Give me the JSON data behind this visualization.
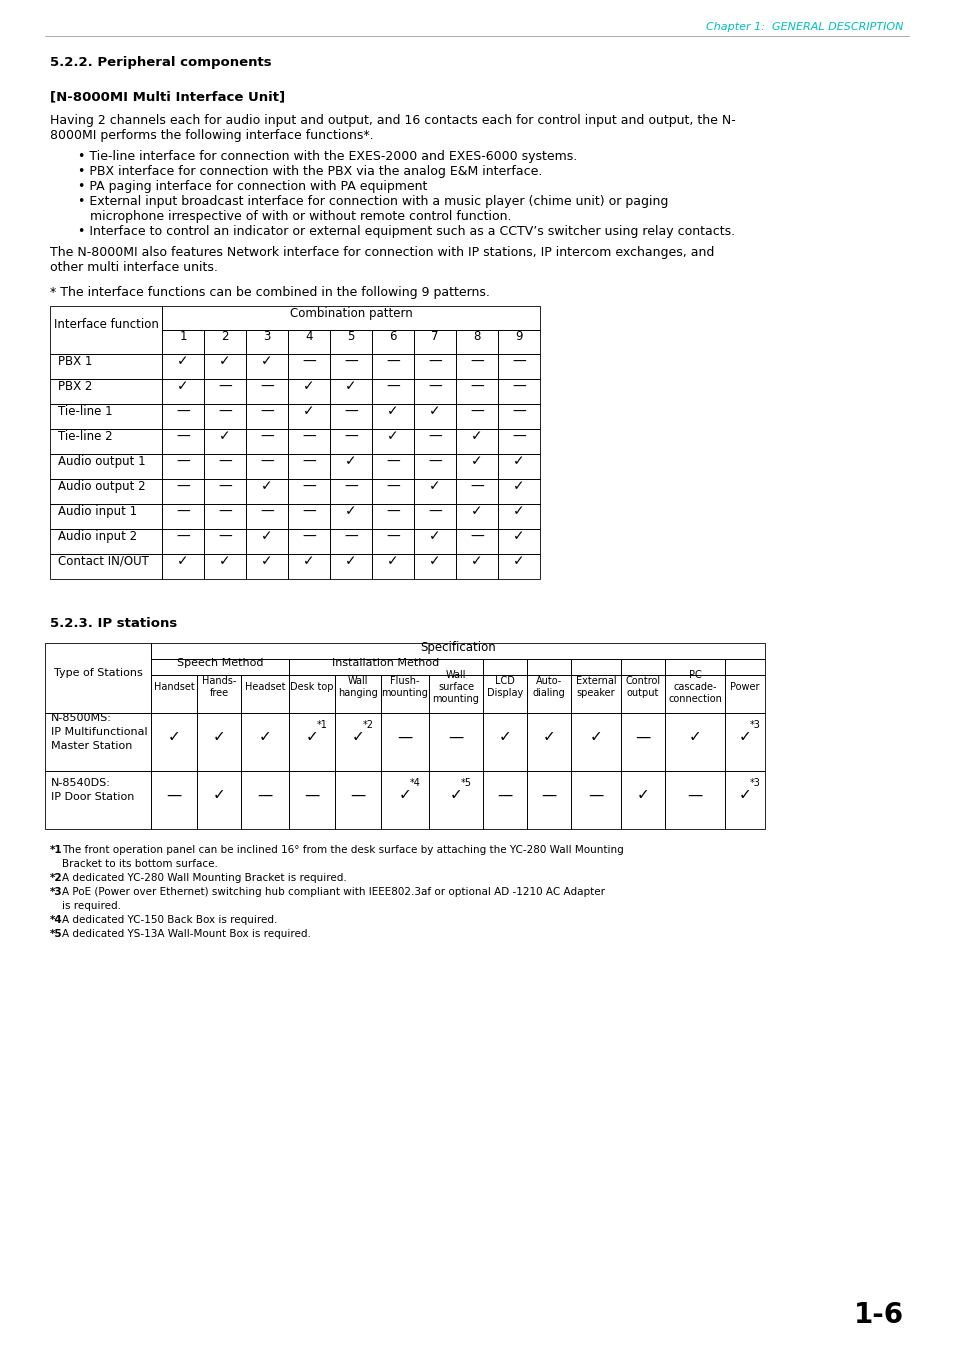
{
  "header_text": "Chapter 1:  GENERAL DESCRIPTION",
  "header_color": "#00BFBF",
  "section_title": "5.2.2. Peripheral components",
  "subsection_title": "[N-8000MI Multi Interface Unit]",
  "body1_line1": "Having 2 channels each for audio input and output, and 16 contacts each for control input and output, the N-",
  "body1_line2": "8000MI performs the following interface functions*.",
  "bullets": [
    "• Tie-line interface for connection with the EXES-2000 and EXES-6000 systems.",
    "• PBX interface for connection with the PBX via the analog E&M interface.",
    "• PA paging interface for connection with PA equipment",
    "• External input broadcast interface for connection with a music player (chime unit) or paging",
    "   microphone irrespective of with or without remote control function.",
    "• Interface to control an indicator or external equipment such as a CCTV’s switcher using relay contacts."
  ],
  "body2_line1": "The N-8000MI also features Network interface for connection with IP stations, IP intercom exchanges, and",
  "body2_line2": "other multi interface units.",
  "note_text": "* The interface functions can be combined in the following 9 patterns.",
  "t1_rows": [
    [
      "PBX 1",
      "✓",
      "✓",
      "✓",
      "—",
      "—",
      "—",
      "—",
      "—",
      "—"
    ],
    [
      "PBX 2",
      "✓",
      "—",
      "—",
      "✓",
      "✓",
      "—",
      "—",
      "—",
      "—"
    ],
    [
      "Tie-line 1",
      "—",
      "—",
      "—",
      "✓",
      "—",
      "✓",
      "✓",
      "—",
      "—"
    ],
    [
      "Tie-line 2",
      "—",
      "✓",
      "—",
      "—",
      "—",
      "✓",
      "—",
      "✓",
      "—"
    ],
    [
      "Audio output 1",
      "—",
      "—",
      "—",
      "—",
      "✓",
      "—",
      "—",
      "✓",
      "✓"
    ],
    [
      "Audio output 2",
      "—",
      "—",
      "✓",
      "—",
      "—",
      "—",
      "✓",
      "—",
      "✓"
    ],
    [
      "Audio input 1",
      "—",
      "—",
      "—",
      "—",
      "✓",
      "—",
      "—",
      "✓",
      "✓"
    ],
    [
      "Audio input 2",
      "—",
      "—",
      "✓",
      "—",
      "—",
      "—",
      "✓",
      "—",
      "✓"
    ],
    [
      "Contact IN/OUT",
      "✓",
      "✓",
      "✓",
      "✓",
      "✓",
      "✓",
      "✓",
      "✓",
      "✓"
    ]
  ],
  "section2_title": "5.2.3. IP stations",
  "t2_check_row1": [
    "✓",
    "✓",
    "✓",
    "✓",
    "✓",
    "—",
    "—",
    "✓",
    "✓",
    "✓",
    "—",
    "✓",
    "✓"
  ],
  "t2_super_row1": [
    "",
    "",
    "",
    "1",
    "2",
    "",
    "",
    "",
    "",
    "",
    "",
    "",
    "3"
  ],
  "t2_check_row2": [
    "—",
    "✓",
    "—",
    "—",
    "—",
    "✓",
    "✓",
    "—",
    "—",
    "—",
    "✓",
    "—",
    "✓"
  ],
  "t2_super_row2": [
    "",
    "",
    "",
    "",
    "",
    "4",
    "5",
    "",
    "",
    "",
    "",
    "",
    "3"
  ],
  "footnotes": [
    [
      "*1",
      "The front operation panel can be inclined 16° from the desk surface by attaching the YC-280 Wall Mounting"
    ],
    [
      "",
      "Bracket to its bottom surface."
    ],
    [
      "*2",
      "A dedicated YC-280 Wall Mounting Bracket is required."
    ],
    [
      "*3",
      "A PoE (Power over Ethernet) switching hub compliant with IEEE802.3af or optional AD -1210 AC Adapter"
    ],
    [
      "",
      "is required."
    ],
    [
      "*4",
      "A dedicated YC-150 Back Box is required."
    ],
    [
      "*5",
      "A dedicated YS-13A Wall-Mount Box is required."
    ]
  ],
  "page_number": "1-6",
  "bg_color": "#ffffff"
}
